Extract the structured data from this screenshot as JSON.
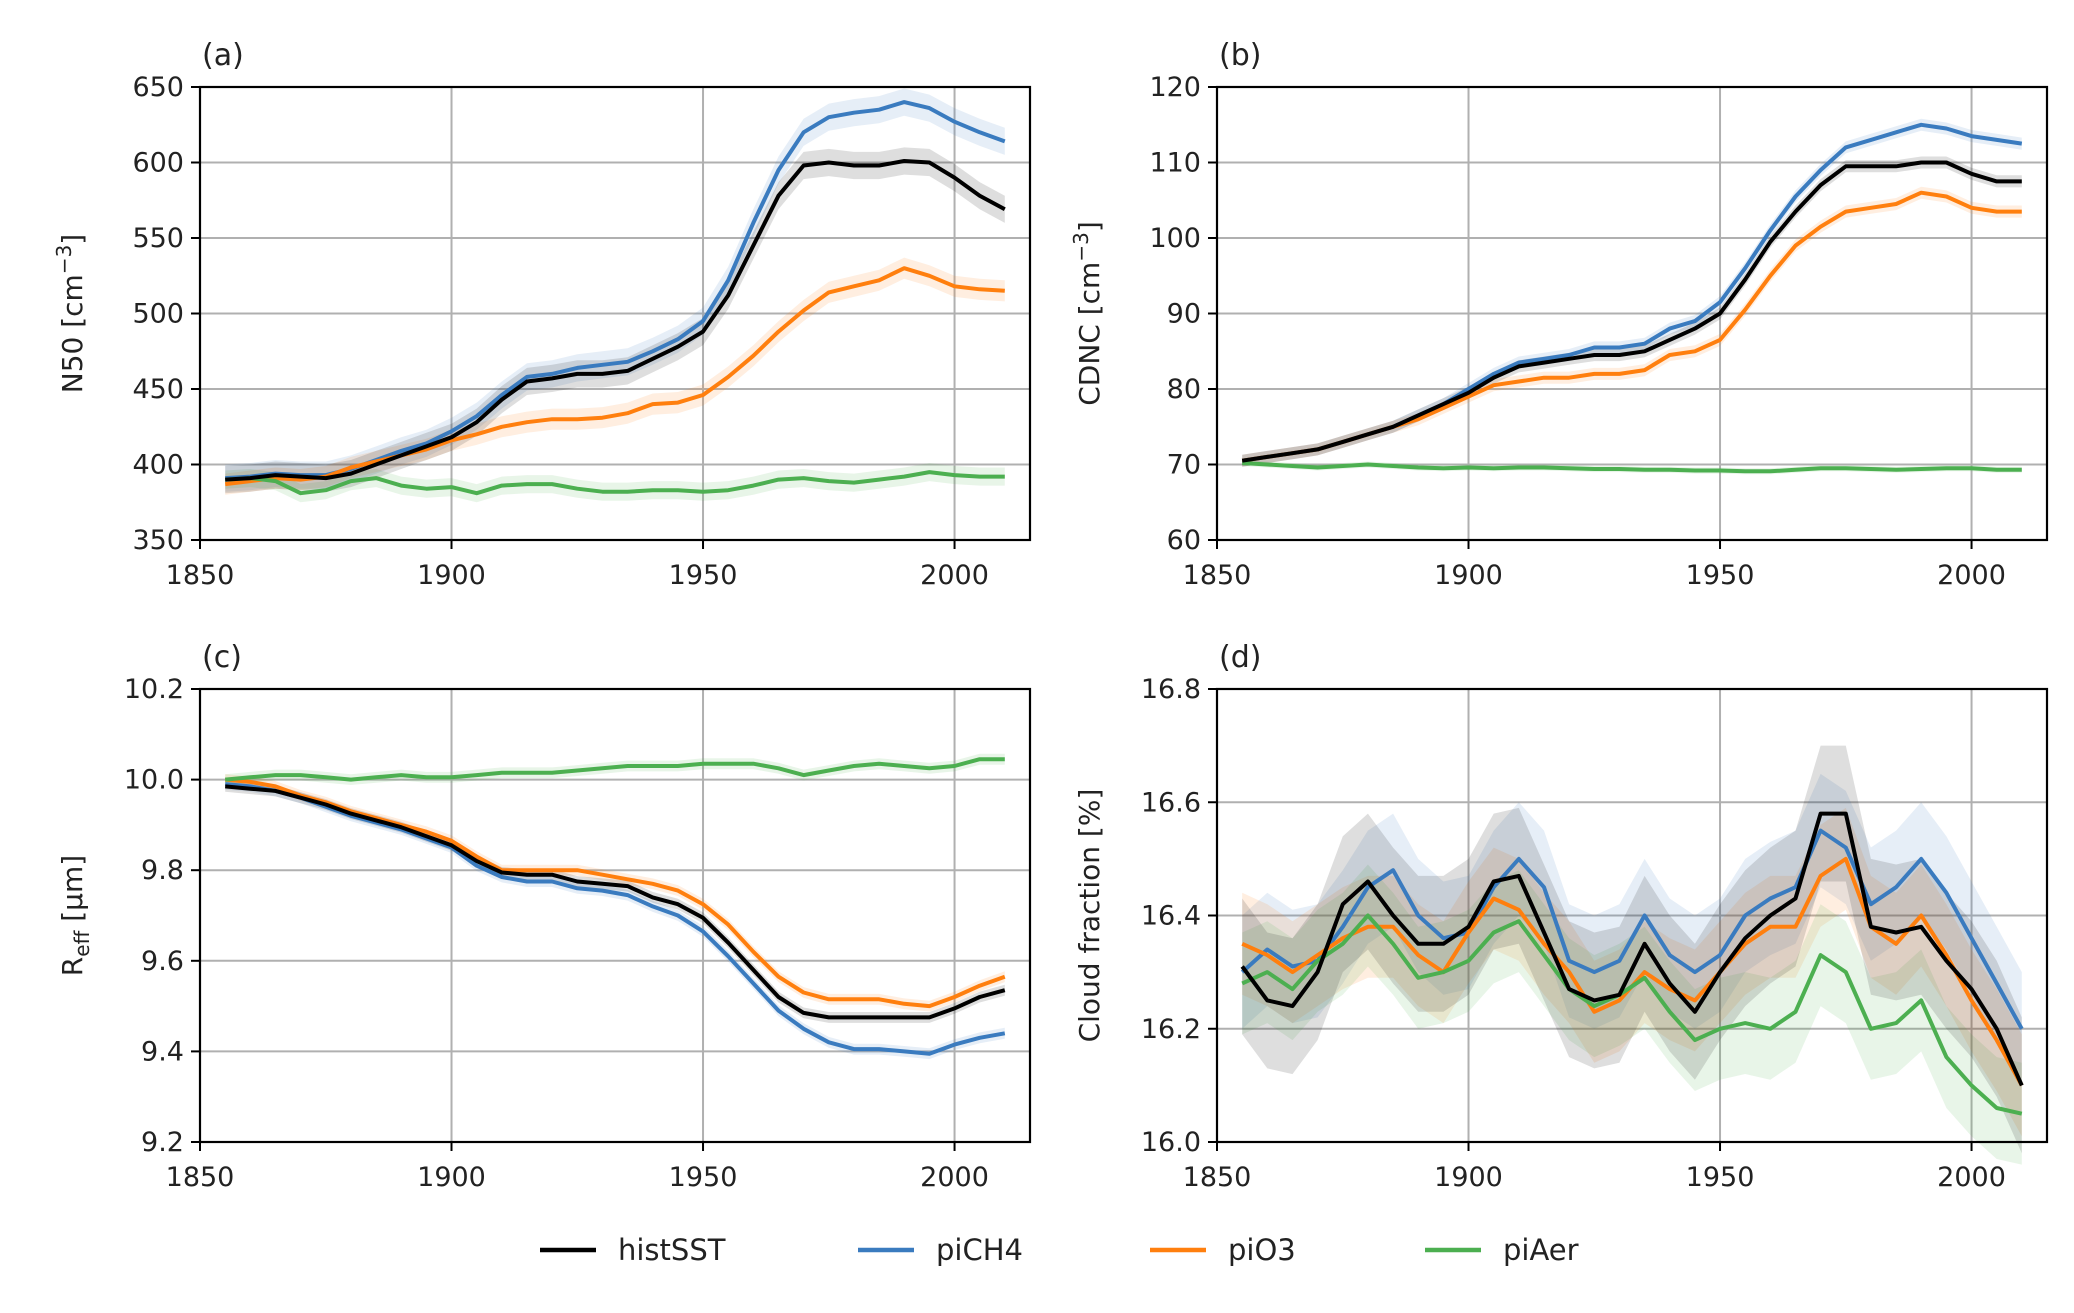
{
  "colors": {
    "histSST": "#000000",
    "piCH4": "#3a7bbf",
    "piO3": "#ff7f0e",
    "piAer": "#4caf50"
  },
  "legend": {
    "placement": "bottom-center",
    "entries": [
      {
        "key": "histSST",
        "label": "histSST"
      },
      {
        "key": "piCH4",
        "label": "piCH4"
      },
      {
        "key": "piO3",
        "label": "piO3"
      },
      {
        "key": "piAer",
        "label": "piAer"
      }
    ]
  },
  "chart_data": [
    {
      "panel_label": "(a)",
      "type": "line",
      "ylabel_main": "N50 [cm",
      "ylabel_sup": "−3",
      "ylabel_end": "]",
      "ylabel_sub": "",
      "xlim": [
        1850,
        2015
      ],
      "ylim": [
        350,
        650
      ],
      "xticks": [
        1850,
        1900,
        1950,
        2000
      ],
      "yticks": [
        350,
        400,
        450,
        500,
        550,
        600,
        650
      ],
      "ytick_labels": [
        "350",
        "400",
        "450",
        "500",
        "550",
        "600",
        "650"
      ],
      "grid": true,
      "x": [
        1855,
        1860,
        1865,
        1870,
        1875,
        1880,
        1885,
        1890,
        1895,
        1900,
        1905,
        1910,
        1915,
        1920,
        1925,
        1930,
        1935,
        1940,
        1945,
        1950,
        1955,
        1960,
        1965,
        1970,
        1975,
        1980,
        1985,
        1990,
        1995,
        2000,
        2005,
        2010
      ],
      "series": [
        {
          "key": "piCH4",
          "band": 9,
          "values": [
            391,
            392,
            394,
            393,
            393,
            397,
            403,
            409,
            414,
            422,
            432,
            446,
            458,
            460,
            464,
            466,
            468,
            475,
            483,
            495,
            522,
            560,
            595,
            620,
            630,
            633,
            635,
            640,
            636,
            627,
            620,
            614
          ]
        },
        {
          "key": "piO3",
          "band": 7,
          "values": [
            387,
            389,
            391,
            390,
            392,
            398,
            402,
            406,
            410,
            416,
            420,
            425,
            428,
            430,
            430,
            431,
            434,
            440,
            441,
            446,
            458,
            472,
            488,
            502,
            514,
            518,
            522,
            530,
            525,
            518,
            516,
            515
          ]
        },
        {
          "key": "piAer",
          "band": 6,
          "values": [
            390,
            391,
            389,
            381,
            383,
            389,
            391,
            386,
            384,
            385,
            381,
            386,
            387,
            387,
            384,
            382,
            382,
            383,
            383,
            382,
            383,
            386,
            390,
            391,
            389,
            388,
            390,
            392,
            395,
            393,
            392,
            392
          ]
        },
        {
          "key": "histSST",
          "band": 9,
          "values": [
            390,
            391,
            393,
            392,
            391,
            394,
            400,
            406,
            412,
            418,
            428,
            443,
            455,
            457,
            460,
            460,
            462,
            470,
            478,
            488,
            512,
            545,
            578,
            598,
            600,
            598,
            598,
            601,
            600,
            590,
            578,
            569
          ]
        }
      ]
    },
    {
      "panel_label": "(b)",
      "type": "line",
      "ylabel_main": "CDNC [cm",
      "ylabel_sup": "−3",
      "ylabel_end": "]",
      "ylabel_sub": "",
      "xlim": [
        1850,
        2015
      ],
      "ylim": [
        60,
        120
      ],
      "xticks": [
        1850,
        1900,
        1950,
        2000
      ],
      "yticks": [
        60,
        70,
        80,
        90,
        100,
        110,
        120
      ],
      "ytick_labels": [
        "60",
        "70",
        "80",
        "90",
        "100",
        "110",
        "120"
      ],
      "grid": true,
      "x": [
        1855,
        1860,
        1865,
        1870,
        1875,
        1880,
        1885,
        1890,
        1895,
        1900,
        1905,
        1910,
        1915,
        1920,
        1925,
        1930,
        1935,
        1940,
        1945,
        1950,
        1955,
        1960,
        1965,
        1970,
        1975,
        1980,
        1985,
        1990,
        1995,
        2000,
        2005,
        2010
      ],
      "series": [
        {
          "key": "piCH4",
          "band": 0.8,
          "values": [
            70.5,
            71.0,
            71.5,
            72.0,
            73.0,
            74.0,
            75.0,
            76.5,
            78.0,
            80.0,
            82.0,
            83.5,
            84.0,
            84.5,
            85.5,
            85.5,
            86.0,
            88.0,
            89.0,
            91.5,
            96.0,
            101.0,
            105.5,
            109.0,
            112.0,
            113.0,
            114.0,
            115.0,
            114.5,
            113.5,
            113.0,
            112.5
          ]
        },
        {
          "key": "piO3",
          "band": 0.8,
          "values": [
            70.5,
            71.0,
            71.5,
            72.0,
            73.0,
            74.0,
            75.0,
            76.0,
            77.5,
            79.0,
            80.5,
            81.0,
            81.5,
            81.5,
            82.0,
            82.0,
            82.5,
            84.5,
            85.0,
            86.5,
            90.5,
            95.0,
            99.0,
            101.5,
            103.5,
            104.0,
            104.5,
            106.0,
            105.5,
            104.0,
            103.5,
            103.5
          ]
        },
        {
          "key": "piAer",
          "band": 0.4,
          "values": [
            70.2,
            70.0,
            69.8,
            69.6,
            69.8,
            70.0,
            69.8,
            69.6,
            69.5,
            69.6,
            69.5,
            69.6,
            69.6,
            69.5,
            69.4,
            69.4,
            69.3,
            69.3,
            69.2,
            69.2,
            69.1,
            69.1,
            69.3,
            69.5,
            69.5,
            69.4,
            69.3,
            69.4,
            69.5,
            69.5,
            69.3,
            69.3
          ]
        },
        {
          "key": "histSST",
          "band": 0.8,
          "values": [
            70.5,
            71.0,
            71.5,
            72.0,
            73.0,
            74.0,
            75.0,
            76.5,
            78.0,
            79.5,
            81.5,
            83.0,
            83.5,
            84.0,
            84.5,
            84.5,
            85.0,
            86.5,
            88.0,
            90.0,
            94.5,
            99.5,
            103.5,
            107.0,
            109.5,
            109.5,
            109.5,
            110.0,
            110.0,
            108.5,
            107.5,
            107.5
          ]
        }
      ]
    },
    {
      "panel_label": "(c)",
      "type": "line",
      "ylabel_main": "R",
      "ylabel_sup": "",
      "ylabel_sub": "eff",
      "ylabel_end": " [µm]",
      "xlim": [
        1850,
        2015
      ],
      "ylim": [
        9.2,
        10.2
      ],
      "xticks": [
        1850,
        1900,
        1950,
        2000
      ],
      "yticks": [
        9.2,
        9.4,
        9.6,
        9.8,
        10.0,
        10.2
      ],
      "ytick_labels": [
        "9.2",
        "9.4",
        "9.6",
        "9.8",
        "10.0",
        "10.2"
      ],
      "grid": true,
      "x": [
        1855,
        1860,
        1865,
        1870,
        1875,
        1880,
        1885,
        1890,
        1895,
        1900,
        1905,
        1910,
        1915,
        1920,
        1925,
        1930,
        1935,
        1940,
        1945,
        1950,
        1955,
        1960,
        1965,
        1970,
        1975,
        1980,
        1985,
        1990,
        1995,
        2000,
        2005,
        2010
      ],
      "series": [
        {
          "key": "piCH4",
          "band": 0.012,
          "values": [
            9.99,
            9.985,
            9.975,
            9.96,
            9.94,
            9.92,
            9.905,
            9.89,
            9.87,
            9.85,
            9.81,
            9.785,
            9.775,
            9.775,
            9.76,
            9.755,
            9.745,
            9.72,
            9.7,
            9.665,
            9.61,
            9.55,
            9.49,
            9.45,
            9.42,
            9.405,
            9.405,
            9.4,
            9.395,
            9.415,
            9.43,
            9.44
          ]
        },
        {
          "key": "piO3",
          "band": 0.012,
          "values": [
            10.0,
            9.995,
            9.985,
            9.965,
            9.95,
            9.93,
            9.915,
            9.9,
            9.885,
            9.865,
            9.83,
            9.8,
            9.8,
            9.8,
            9.8,
            9.79,
            9.78,
            9.77,
            9.755,
            9.725,
            9.68,
            9.62,
            9.565,
            9.53,
            9.515,
            9.515,
            9.515,
            9.505,
            9.5,
            9.52,
            9.545,
            9.565
          ]
        },
        {
          "key": "piAer",
          "band": 0.012,
          "values": [
            10.0,
            10.005,
            10.01,
            10.01,
            10.005,
            10.0,
            10.005,
            10.01,
            10.005,
            10.005,
            10.01,
            10.015,
            10.015,
            10.015,
            10.02,
            10.025,
            10.03,
            10.03,
            10.03,
            10.035,
            10.035,
            10.035,
            10.025,
            10.01,
            10.02,
            10.03,
            10.035,
            10.03,
            10.025,
            10.03,
            10.045,
            10.045
          ]
        },
        {
          "key": "histSST",
          "band": 0.012,
          "values": [
            9.985,
            9.98,
            9.975,
            9.96,
            9.945,
            9.925,
            9.91,
            9.895,
            9.875,
            9.855,
            9.82,
            9.795,
            9.79,
            9.79,
            9.775,
            9.77,
            9.765,
            9.74,
            9.725,
            9.695,
            9.64,
            9.58,
            9.52,
            9.485,
            9.475,
            9.475,
            9.475,
            9.475,
            9.475,
            9.495,
            9.52,
            9.535
          ]
        }
      ]
    },
    {
      "panel_label": "(d)",
      "type": "line",
      "ylabel_main": "Cloud fraction [%]",
      "ylabel_sup": "",
      "ylabel_sub": "",
      "ylabel_end": "",
      "xlim": [
        1850,
        2015
      ],
      "ylim": [
        16.0,
        16.8
      ],
      "xticks": [
        1850,
        1900,
        1950,
        2000
      ],
      "yticks": [
        16.0,
        16.2,
        16.4,
        16.6,
        16.8
      ],
      "ytick_labels": [
        "16.0",
        "16.2",
        "16.4",
        "16.6",
        "16.8"
      ],
      "grid": true,
      "x": [
        1855,
        1860,
        1865,
        1870,
        1875,
        1880,
        1885,
        1890,
        1895,
        1900,
        1905,
        1910,
        1915,
        1920,
        1925,
        1930,
        1935,
        1940,
        1945,
        1950,
        1955,
        1960,
        1965,
        1970,
        1975,
        1980,
        1985,
        1990,
        1995,
        2000,
        2005,
        2010
      ],
      "series": [
        {
          "key": "piCH4",
          "band": 0.1,
          "values": [
            16.3,
            16.34,
            16.31,
            16.32,
            16.38,
            16.45,
            16.48,
            16.4,
            16.36,
            16.37,
            16.45,
            16.5,
            16.45,
            16.32,
            16.3,
            16.32,
            16.4,
            16.33,
            16.3,
            16.33,
            16.4,
            16.43,
            16.45,
            16.55,
            16.52,
            16.42,
            16.45,
            16.5,
            16.44,
            16.36,
            16.28,
            16.2
          ]
        },
        {
          "key": "piO3",
          "band": 0.09,
          "values": [
            16.35,
            16.33,
            16.3,
            16.33,
            16.36,
            16.38,
            16.38,
            16.33,
            16.3,
            16.37,
            16.43,
            16.41,
            16.35,
            16.3,
            16.23,
            16.25,
            16.3,
            16.27,
            16.25,
            16.3,
            16.35,
            16.38,
            16.38,
            16.47,
            16.5,
            16.38,
            16.35,
            16.4,
            16.33,
            16.25,
            16.18,
            16.1
          ]
        },
        {
          "key": "piAer",
          "band": 0.09,
          "values": [
            16.28,
            16.3,
            16.27,
            16.32,
            16.35,
            16.4,
            16.35,
            16.29,
            16.3,
            16.32,
            16.37,
            16.39,
            16.33,
            16.27,
            16.24,
            16.26,
            16.29,
            16.23,
            16.18,
            16.2,
            16.21,
            16.2,
            16.23,
            16.33,
            16.3,
            16.2,
            16.21,
            16.25,
            16.15,
            16.1,
            16.06,
            16.05
          ]
        },
        {
          "key": "histSST",
          "band": 0.12,
          "values": [
            16.31,
            16.25,
            16.24,
            16.3,
            16.42,
            16.46,
            16.4,
            16.35,
            16.35,
            16.38,
            16.46,
            16.47,
            16.37,
            16.27,
            16.25,
            16.26,
            16.35,
            16.28,
            16.23,
            16.3,
            16.36,
            16.4,
            16.43,
            16.58,
            16.58,
            16.38,
            16.37,
            16.38,
            16.32,
            16.27,
            16.2,
            16.1
          ]
        }
      ]
    }
  ]
}
